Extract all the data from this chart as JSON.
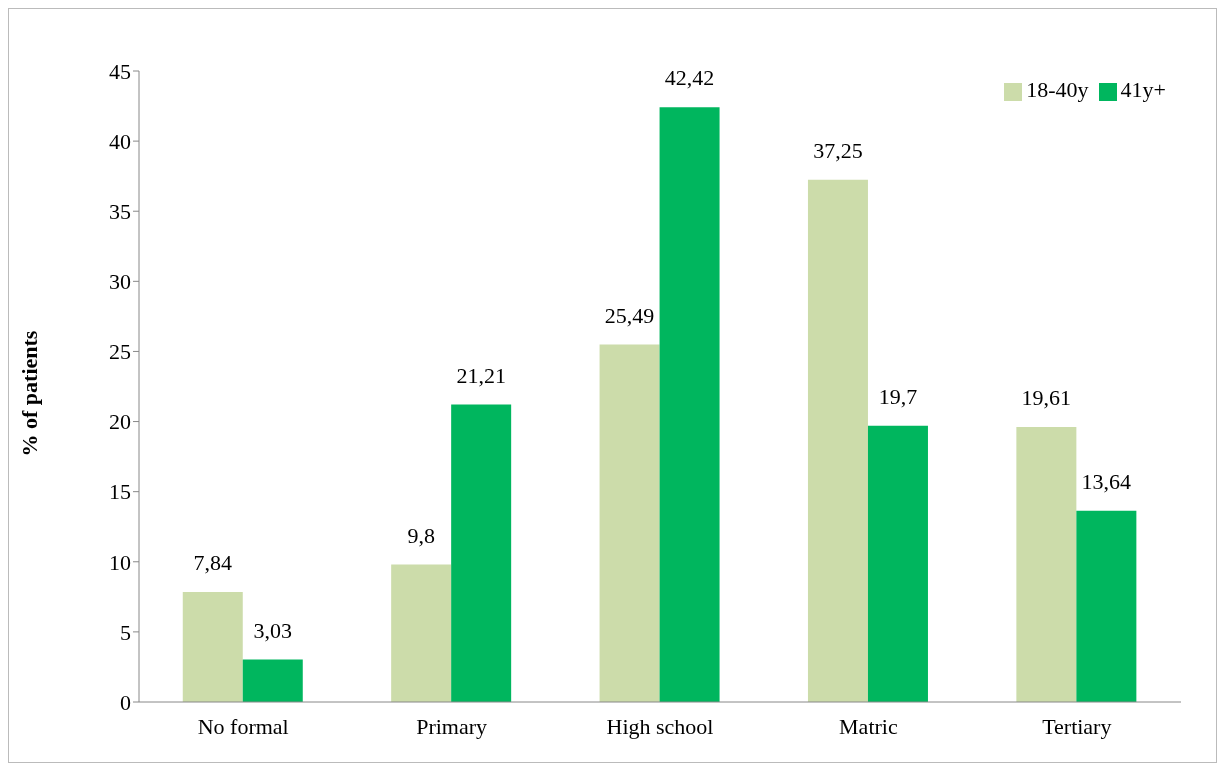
{
  "chart_data": {
    "type": "bar",
    "ylabel": "% of patients",
    "categories": [
      "No formal",
      "Primary",
      "High school",
      "Matric",
      "Tertiary"
    ],
    "series": [
      {
        "name": "18-40y",
        "color": "#ccdcaa",
        "values": [
          7.84,
          9.8,
          25.49,
          37.25,
          19.61
        ],
        "value_labels": [
          "7,84",
          "9,8",
          "25,49",
          "37,25",
          "19,61"
        ]
      },
      {
        "name": "41y+",
        "color": "#00b65e",
        "values": [
          3.03,
          21.21,
          42.42,
          19.7,
          13.64
        ],
        "value_labels": [
          "3,03",
          "21,21",
          "42,42",
          "19,7",
          "13,64"
        ]
      }
    ],
    "ylim": [
      0,
      45
    ],
    "yticks": [
      0,
      5,
      10,
      15,
      20,
      25,
      30,
      35,
      40,
      45
    ],
    "grid": false,
    "legend": "top right"
  }
}
